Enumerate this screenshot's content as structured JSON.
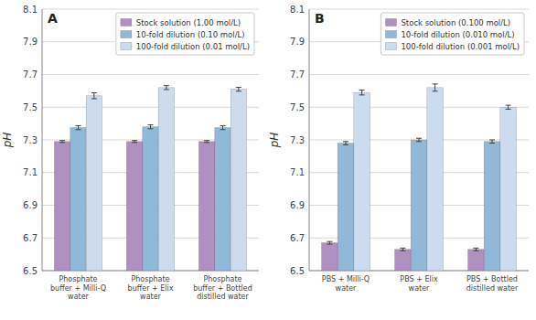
{
  "chart_data": [
    {
      "type": "bar",
      "title": "A",
      "categories": [
        "Phosphate\nbuffer + Milli-Q\nwater",
        "Phosphate\nbuffer + Elix\nwater",
        "Phosphate\nbuffer + Bottled\ndistilled water"
      ],
      "series": [
        {
          "name": "Stock solution (1.00 mol/L)",
          "color": "#b090c0",
          "values": [
            7.29,
            7.29,
            7.29
          ],
          "errors": [
            0.006,
            0.006,
            0.006
          ]
        },
        {
          "name": "10-fold dilution (0.10 mol/L)",
          "color": "#90b8d8",
          "values": [
            7.375,
            7.38,
            7.375
          ],
          "errors": [
            0.012,
            0.012,
            0.012
          ]
        },
        {
          "name": "100-fold dilution (0.01 mol/L)",
          "color": "#ccdcee",
          "values": [
            7.57,
            7.62,
            7.61
          ],
          "errors": [
            0.018,
            0.012,
            0.012
          ]
        }
      ],
      "ylabel": "pH",
      "ylim": [
        6.5,
        8.1
      ],
      "yticks": [
        6.5,
        6.7,
        6.9,
        7.1,
        7.3,
        7.5,
        7.7,
        7.9,
        8.1
      ],
      "grid": true,
      "legend": "upper right"
    },
    {
      "type": "bar",
      "title": "B",
      "categories": [
        "PBS + Milli-Q\nwater",
        "PBS + Elix\nwater",
        "PBS + Bottled\ndistilled water"
      ],
      "series": [
        {
          "name": "Stock solution (0.100 mol/L)",
          "color": "#b090c0",
          "values": [
            6.67,
            6.63,
            6.63
          ],
          "errors": [
            0.008,
            0.008,
            0.008
          ]
        },
        {
          "name": "10-fold dilution (0.010 mol/L)",
          "color": "#90b8d8",
          "values": [
            7.28,
            7.3,
            7.29
          ],
          "errors": [
            0.01,
            0.01,
            0.01
          ]
        },
        {
          "name": "100-fold dilution (0.001 mol/L)",
          "color": "#ccdcee",
          "values": [
            7.59,
            7.62,
            7.5
          ],
          "errors": [
            0.015,
            0.022,
            0.012
          ]
        }
      ],
      "ylabel": "pH",
      "ylim": [
        6.5,
        8.1
      ],
      "yticks": [
        6.5,
        6.7,
        6.9,
        7.1,
        7.3,
        7.5,
        7.7,
        7.9,
        8.1
      ],
      "grid": true,
      "legend": "upper right"
    }
  ]
}
